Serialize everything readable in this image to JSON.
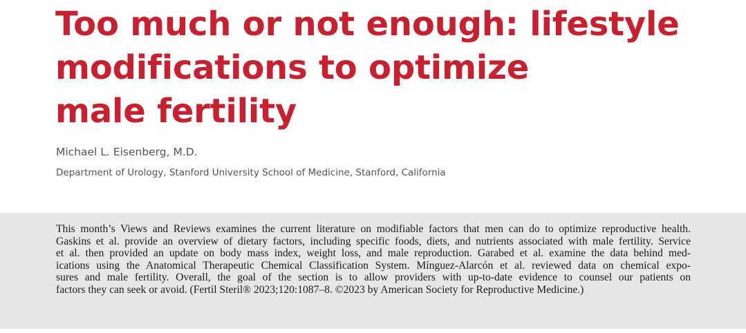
{
  "article": {
    "title_lines": [
      "Too much or not enough: lifestyle",
      "modifications to optimize",
      "male fertility"
    ],
    "author": "Michael L. Eisenberg, M.D.",
    "affiliation": "Department of Urology, Stanford University School of Medicine, Stanford, California"
  },
  "abstract": {
    "lines": [
      "This month’s Views and Reviews examines the current literature on modifiable factors that men can do to optimize reproductive health.",
      "Gaskins et al. provide an overview of dietary factors, including specific foods, diets, and nutrients associated with male fertility. Service",
      "et al. then provided an update on body mass index, weight loss, and male reproduction. Garabed et al. examine the data behind med-",
      "ications using the Anatomical Therapeutic Chemical Classification System. Mínguez-Alarcón et al. reviewed data on chemical expo-",
      "sures and male fertility. Overall, the goal of the section is to allow providers with up-to-date evidence to counsel our patients on",
      "factors they can seek or avoid. (Fertil Steril® 2023;120:1087–8. ©2023 by American Society for Reproductive Medicine.)"
    ]
  },
  "colors": {
    "title": "#c8202e",
    "meta_text": "#555555",
    "abstract_background": "#e7e7e7",
    "abstract_text": "#1a1a1a"
  }
}
